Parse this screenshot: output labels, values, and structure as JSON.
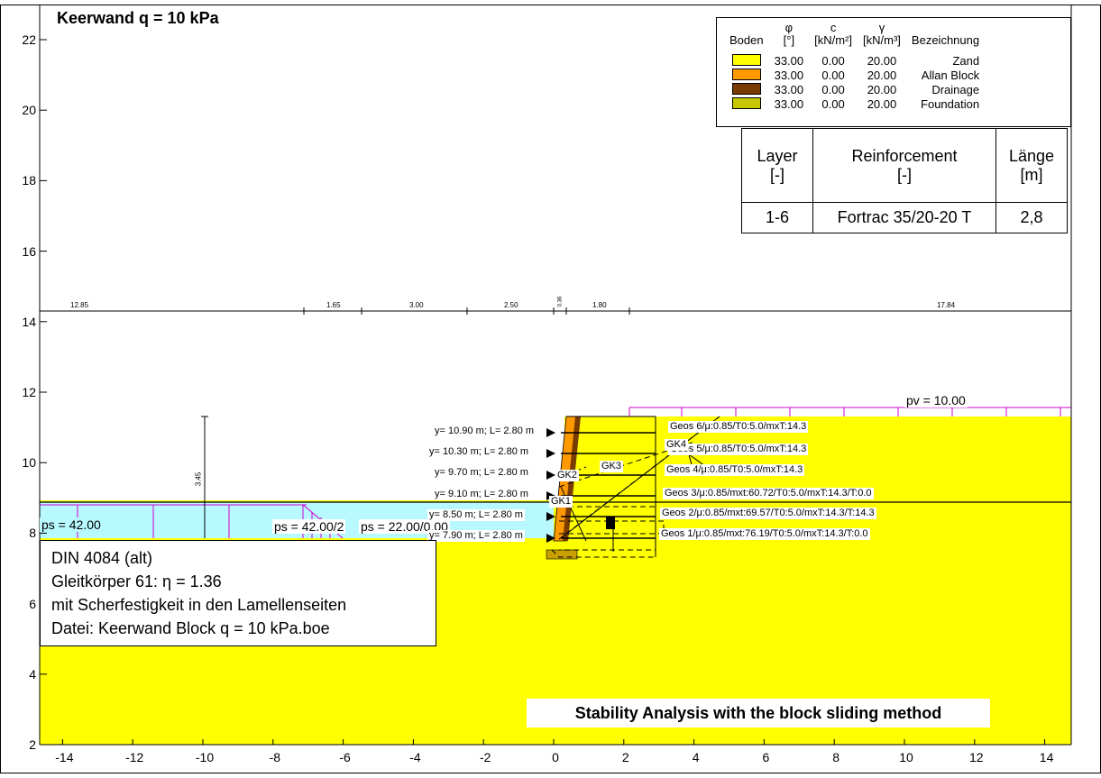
{
  "title": "Keerwand q = 10 kPa",
  "info": {
    "line1": "DIN 4084 (alt)",
    "line2": "Gleitkörper 61: η = 1.36",
    "line3": "mit Scherfestigkeit in den Lamellenseiten",
    "line4": "Datei: Keerwand Block q = 10 kPa.boe"
  },
  "caption": "Stability Analysis with the block sliding method",
  "soil_legend": {
    "headers": {
      "name": "Boden",
      "phi": "φ",
      "phi_unit": "[°]",
      "c": "c",
      "c_unit": "[kN/m²]",
      "gamma": "γ",
      "gamma_unit": "[kN/m³]",
      "desc": "Bezeichnung"
    },
    "rows": [
      {
        "color": "#ffff00",
        "phi": "33.00",
        "c": "0.00",
        "gamma": "20.00",
        "desc": "Zand"
      },
      {
        "color": "#ff9900",
        "phi": "33.00",
        "c": "0.00",
        "gamma": "20.00",
        "desc": "Allan Block"
      },
      {
        "color": "#7a3b00",
        "phi": "33.00",
        "c": "0.00",
        "gamma": "20.00",
        "desc": "Drainage"
      },
      {
        "color": "#c8c800",
        "phi": "33.00",
        "c": "0.00",
        "gamma": "20.00",
        "desc": "Foundation"
      }
    ]
  },
  "reinforcement_table": {
    "headers": [
      "Layer",
      "Reinforcement",
      "Länge"
    ],
    "units": [
      "[-]",
      "[-]",
      "[m]"
    ],
    "row": [
      "1-6",
      "Fortrac 35/20-20 T",
      "2,8"
    ]
  },
  "axes": {
    "x_ticks": [
      "-14",
      "-12",
      "-10",
      "-8",
      "-6",
      "-4",
      "-2",
      "0",
      "2",
      "4",
      "6",
      "8",
      "10",
      "12",
      "14"
    ],
    "y_ticks": [
      "2",
      "4",
      "6",
      "8",
      "10",
      "12",
      "14",
      "16",
      "18",
      "20",
      "22"
    ]
  },
  "dimension_labels": [
    "12.85",
    "1.65",
    "3.00",
    "2.50",
    "0.36",
    "1.80",
    "17.84"
  ],
  "vertical_dim": "3.45",
  "loads": {
    "pv": "pv = 10.00",
    "ps_left": "ps = 42.00",
    "ps_mid": "ps = 42.00/2",
    "ps_right": "ps = 22.00/0.00"
  },
  "layer_labels": [
    "y= 10.90 m; L= 2.80 m",
    "y= 10.30 m; L= 2.80 m",
    "y= 9.70 m; L= 2.80 m",
    "y= 9.10 m; L= 2.80 m",
    "y= 8.50 m; L= 2.80 m",
    "y= 7.90 m; L= 2.80 m"
  ],
  "geos_labels": [
    "Geos 6/μ:0.85/T0:5.0/mxT:14.3",
    "Geos 5/μ:0.85/T0:5.0/mxT:14.3",
    "Geos 4/μ:0.85/T0:5.0/mxT:14.3",
    "Geos 3/μ:0.85/mxt:60.72/T0:5.0/mxT:14.3/T:0.0",
    "Geos 2/μ:0.85/mxt:69.57/T0:5.0/mxT:14.3/T:14.3",
    "Geos 1/μ:0.85/mxt:76.19/T0:5.0/mxT:14.3/T:0.0"
  ],
  "gk_labels": [
    "GK4",
    "GK3",
    "GK2",
    "GK1"
  ]
}
